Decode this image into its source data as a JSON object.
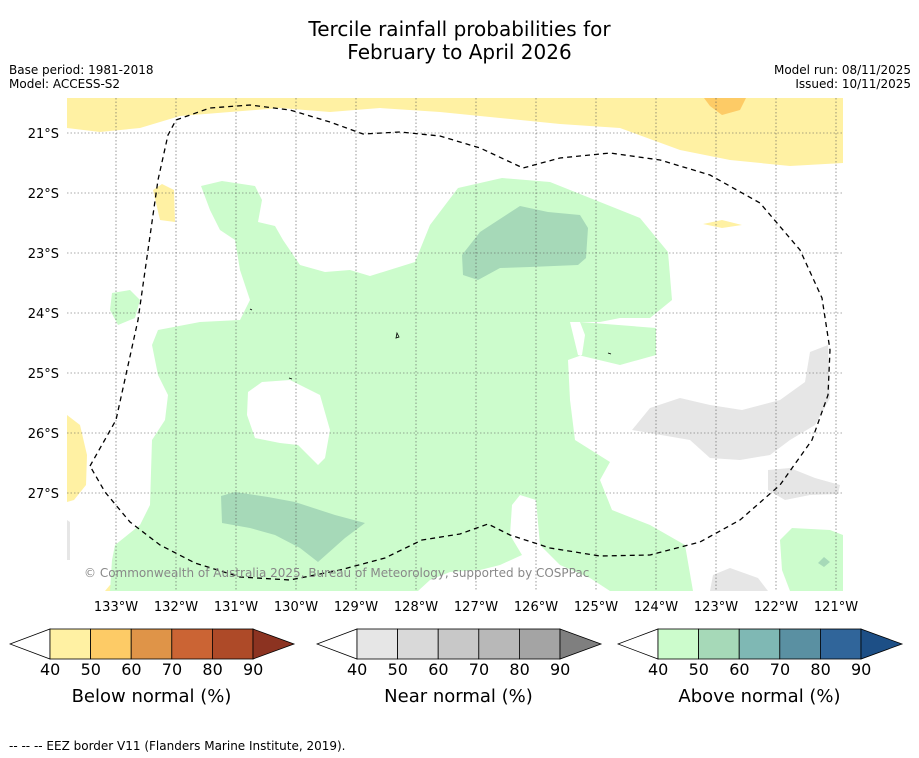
{
  "title_line1": "Tercile rainfall probabilities for",
  "title_line2": "February to April 2026",
  "meta_left": {
    "base_period": "Base period: 1981-2018",
    "model": "Model: ACCESS-S2"
  },
  "meta_right": {
    "model_run": "Model run: 08/11/2025",
    "issued": "Issued: 10/11/2025"
  },
  "lat_labels": [
    "21°S",
    "22°S",
    "23°S",
    "24°S",
    "25°S",
    "26°S",
    "27°S"
  ],
  "lon_labels": [
    "133°W",
    "132°W",
    "131°W",
    "130°W",
    "129°W",
    "128°W",
    "127°W",
    "126°W",
    "125°W",
    "124°W",
    "123°W",
    "122°W",
    "121°W"
  ],
  "copyright": "© Commonwealth of Australia 2025, Bureau of Meteorology, supported by COSPPac",
  "colorbars": [
    {
      "label": "Below normal (%)",
      "ticks": [
        "40",
        "50",
        "60",
        "70",
        "80",
        "90"
      ],
      "colors": [
        "#fff1a3",
        "#fdcb66",
        "#df9448",
        "#cb6434",
        "#ae4a28",
        "#8c3321"
      ]
    },
    {
      "label": "Near normal (%)",
      "ticks": [
        "40",
        "50",
        "60",
        "70",
        "80",
        "90"
      ],
      "colors": [
        "#e6e6e6",
        "#d9d9d9",
        "#c8c8c8",
        "#b8b8b8",
        "#a4a4a4",
        "#7f7f7f"
      ]
    },
    {
      "label": "Above normal (%)",
      "ticks": [
        "40",
        "50",
        "60",
        "70",
        "80",
        "90"
      ],
      "colors": [
        "#ccfccc",
        "#a6d9b8",
        "#7fb8b4",
        "#5a90a2",
        "#30659a",
        "#1d4f86"
      ]
    }
  ],
  "footer": "-- -- -- EEZ border V11 (Flanders Marine Institute, 2019)."
}
